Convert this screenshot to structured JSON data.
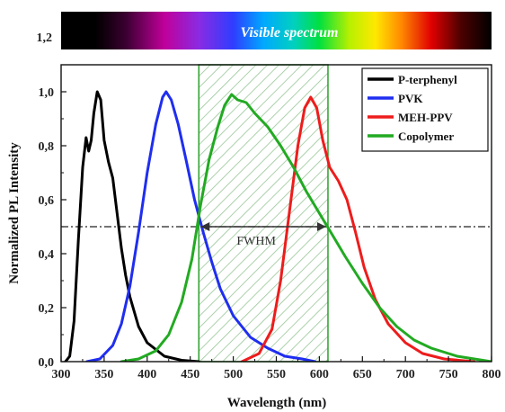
{
  "chart_data": {
    "type": "line",
    "title": "",
    "xlabel": "Wavelength (nm)",
    "ylabel": "Normalized PL Intensity",
    "xlim": [
      300,
      800
    ],
    "ylim": [
      0,
      1.1
    ],
    "x_ticks": [
      "300",
      "350",
      "400",
      "450",
      "500",
      "550",
      "600",
      "650",
      "700",
      "750",
      "800"
    ],
    "y_ticks": [
      "0,0",
      "0,2",
      "0,4",
      "0,6",
      "0,8",
      "1,0"
    ],
    "spectrum_bar": {
      "label": "Visible spectrum",
      "y_label": "1,2"
    },
    "legend_position": "top-right",
    "highlight_band": {
      "x_start": 460,
      "x_end": 610,
      "color": "#2ca02c",
      "hatched": true
    },
    "fwhm": {
      "label": "FWHM",
      "level": 0.5,
      "x_start": 460,
      "x_end": 610
    },
    "series": [
      {
        "name": "P-terphenyl",
        "color": "#000000",
        "points": [
          [
            305,
            0
          ],
          [
            310,
            0.02
          ],
          [
            315,
            0.15
          ],
          [
            320,
            0.45
          ],
          [
            325,
            0.72
          ],
          [
            329,
            0.83
          ],
          [
            332,
            0.78
          ],
          [
            335,
            0.82
          ],
          [
            338,
            0.92
          ],
          [
            342,
            1.0
          ],
          [
            346,
            0.97
          ],
          [
            350,
            0.82
          ],
          [
            355,
            0.74
          ],
          [
            360,
            0.68
          ],
          [
            365,
            0.55
          ],
          [
            370,
            0.42
          ],
          [
            375,
            0.32
          ],
          [
            380,
            0.24
          ],
          [
            390,
            0.13
          ],
          [
            400,
            0.07
          ],
          [
            420,
            0.02
          ],
          [
            440,
            0.005
          ],
          [
            460,
            0
          ]
        ]
      },
      {
        "name": "PVK",
        "color": "#1f2ef0",
        "points": [
          [
            330,
            0
          ],
          [
            345,
            0.01
          ],
          [
            360,
            0.06
          ],
          [
            370,
            0.14
          ],
          [
            380,
            0.28
          ],
          [
            390,
            0.48
          ],
          [
            400,
            0.7
          ],
          [
            410,
            0.88
          ],
          [
            418,
            0.98
          ],
          [
            422,
            1.0
          ],
          [
            428,
            0.97
          ],
          [
            436,
            0.88
          ],
          [
            445,
            0.75
          ],
          [
            455,
            0.6
          ],
          [
            465,
            0.48
          ],
          [
            475,
            0.37
          ],
          [
            485,
            0.27
          ],
          [
            500,
            0.17
          ],
          [
            520,
            0.09
          ],
          [
            540,
            0.05
          ],
          [
            560,
            0.02
          ],
          [
            580,
            0.01
          ],
          [
            595,
            0
          ]
        ]
      },
      {
        "name": "MEH-PPV",
        "color": "#ee1c1c",
        "points": [
          [
            510,
            0
          ],
          [
            530,
            0.03
          ],
          [
            545,
            0.12
          ],
          [
            555,
            0.3
          ],
          [
            565,
            0.55
          ],
          [
            575,
            0.8
          ],
          [
            583,
            0.94
          ],
          [
            590,
            0.98
          ],
          [
            597,
            0.94
          ],
          [
            604,
            0.82
          ],
          [
            612,
            0.72
          ],
          [
            622,
            0.67
          ],
          [
            632,
            0.6
          ],
          [
            642,
            0.48
          ],
          [
            652,
            0.35
          ],
          [
            665,
            0.23
          ],
          [
            680,
            0.14
          ],
          [
            700,
            0.07
          ],
          [
            720,
            0.03
          ],
          [
            745,
            0.01
          ],
          [
            780,
            0
          ]
        ]
      },
      {
        "name": "Copolymer",
        "color": "#22aa22",
        "points": [
          [
            370,
            0
          ],
          [
            390,
            0.01
          ],
          [
            410,
            0.04
          ],
          [
            425,
            0.1
          ],
          [
            440,
            0.22
          ],
          [
            452,
            0.38
          ],
          [
            462,
            0.58
          ],
          [
            472,
            0.75
          ],
          [
            482,
            0.87
          ],
          [
            490,
            0.95
          ],
          [
            498,
            0.99
          ],
          [
            505,
            0.97
          ],
          [
            515,
            0.96
          ],
          [
            525,
            0.92
          ],
          [
            540,
            0.87
          ],
          [
            555,
            0.8
          ],
          [
            570,
            0.72
          ],
          [
            585,
            0.63
          ],
          [
            600,
            0.55
          ],
          [
            615,
            0.47
          ],
          [
            630,
            0.39
          ],
          [
            650,
            0.29
          ],
          [
            670,
            0.2
          ],
          [
            690,
            0.13
          ],
          [
            710,
            0.08
          ],
          [
            730,
            0.05
          ],
          [
            760,
            0.02
          ],
          [
            790,
            0.005
          ],
          [
            800,
            0
          ]
        ]
      }
    ]
  }
}
